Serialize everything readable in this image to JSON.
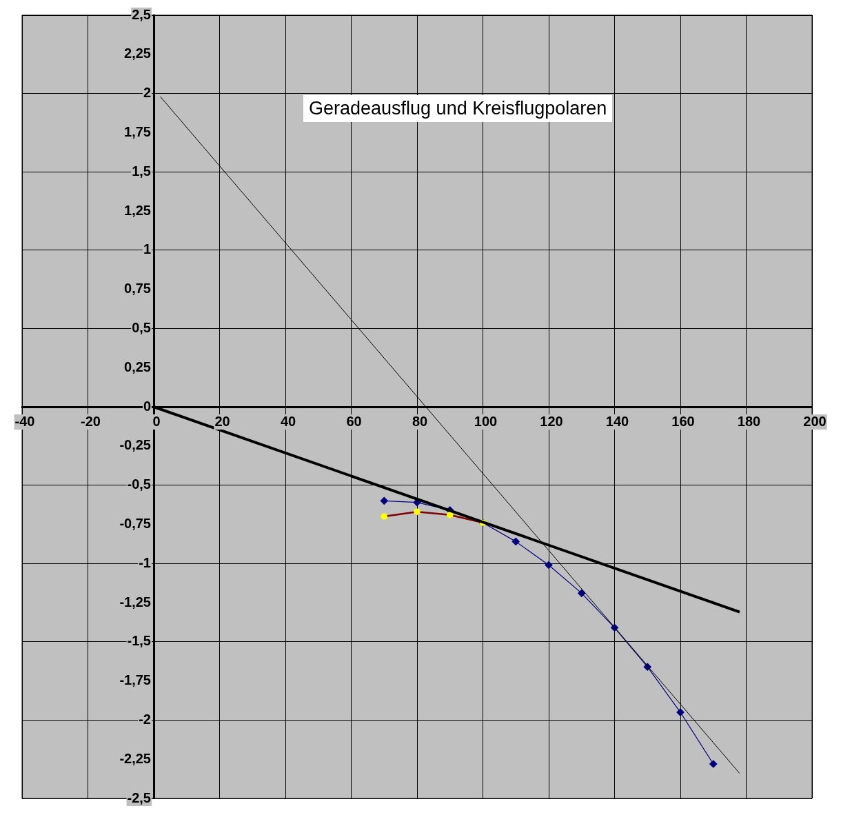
{
  "chart_data": {
    "type": "line",
    "title": "Geradeausflug und Kreisflugpolaren",
    "xlim": [
      -40,
      200
    ],
    "xticks": [
      -40,
      -20,
      0,
      20,
      40,
      60,
      80,
      100,
      120,
      140,
      160,
      180,
      200
    ],
    "ylim": [
      -2.5,
      2.5
    ],
    "yticks": [
      {
        "value": -2.5,
        "label": "-2,5"
      },
      {
        "value": -2.25,
        "label": "-2,25"
      },
      {
        "value": -2,
        "label": "-2"
      },
      {
        "value": -1.75,
        "label": "-1,75"
      },
      {
        "value": -1.5,
        "label": "-1,5"
      },
      {
        "value": -1.25,
        "label": "-1,25"
      },
      {
        "value": -1,
        "label": "-1"
      },
      {
        "value": -0.75,
        "label": "-0,75"
      },
      {
        "value": -0.5,
        "label": "-0,5"
      },
      {
        "value": -0.25,
        "label": "-0,25"
      },
      {
        "value": 0,
        "label": "0"
      },
      {
        "value": 0.25,
        "label": "0,25"
      },
      {
        "value": 0.5,
        "label": "0,5"
      },
      {
        "value": 0.75,
        "label": "0,75"
      },
      {
        "value": 1,
        "label": "1"
      },
      {
        "value": 1.25,
        "label": "1,25"
      },
      {
        "value": 1.5,
        "label": "1,5"
      },
      {
        "value": 1.75,
        "label": "1,75"
      },
      {
        "value": 2,
        "label": "2"
      },
      {
        "value": 2.25,
        "label": "2,25"
      },
      {
        "value": 2.5,
        "label": "2,5"
      }
    ],
    "grid": true,
    "legend": false,
    "series": [
      {
        "color": "#000080",
        "marker": "diamond",
        "x": [
          70,
          80,
          90,
          100,
          110,
          120,
          130,
          140,
          150,
          160,
          170
        ],
        "values": [
          -0.6,
          -0.61,
          -0.66,
          -0.74,
          -0.86,
          -1.01,
          -1.19,
          -1.41,
          -1.66,
          -1.95,
          -2.28
        ]
      },
      {
        "color": "#800000",
        "colors": [
          "#ffff00",
          "#ffff00",
          "#ffff00",
          "#ffff00"
        ],
        "marker": "circle",
        "x": [
          70,
          80,
          90,
          100
        ],
        "values": [
          -0.7,
          -0.67,
          -0.69,
          -0.74
        ]
      },
      {
        "color": "#000000",
        "marker": "none",
        "x": [
          0,
          178
        ],
        "values": [
          0,
          -1.31
        ]
      },
      {
        "color": "#000000",
        "marker": "none",
        "x": [
          2,
          178
        ],
        "values": [
          1.98,
          -2.34
        ]
      }
    ]
  }
}
